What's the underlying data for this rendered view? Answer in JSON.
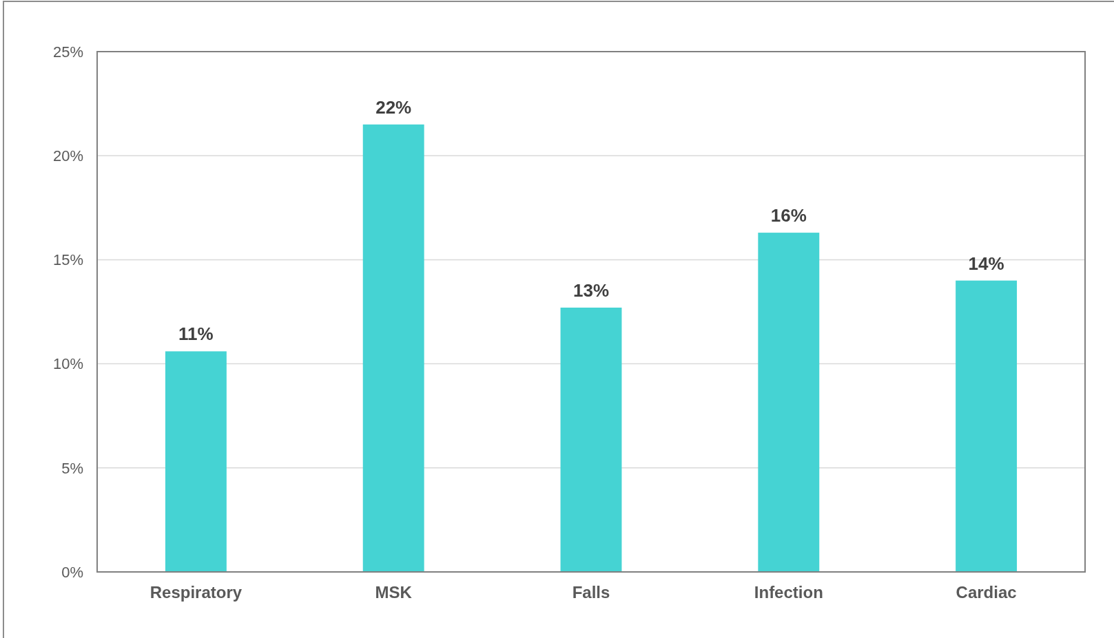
{
  "chart_data": {
    "type": "bar",
    "categories": [
      "Respiratory",
      "MSK",
      "Falls",
      "Infection",
      "Cardiac"
    ],
    "values": [
      10.6,
      21.5,
      12.7,
      16.3,
      14.0
    ],
    "value_labels": [
      "11%",
      "22%",
      "13%",
      "16%",
      "14%"
    ],
    "color": "#45d3d3",
    "ylim": [
      0,
      25
    ],
    "yticks": [
      {
        "value": 0,
        "label": "0%"
      },
      {
        "value": 5,
        "label": "5%"
      },
      {
        "value": 10,
        "label": "10%"
      },
      {
        "value": 15,
        "label": "15%"
      },
      {
        "value": 20,
        "label": "20%"
      },
      {
        "value": 25,
        "label": "25%"
      }
    ],
    "grid": "y"
  }
}
